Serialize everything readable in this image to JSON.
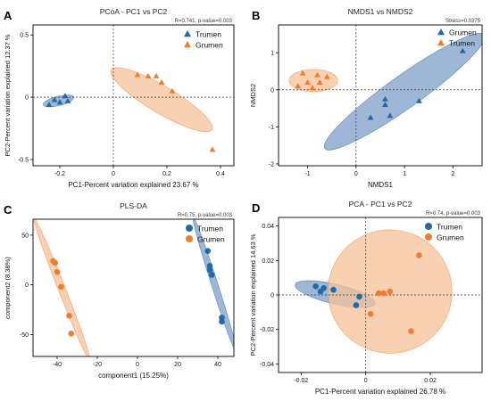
{
  "colors": {
    "blue": "#1f6aa8",
    "orange": "#ee7d2f",
    "blue_fill": "#7f9fca",
    "orange_fill": "#f6c29a"
  },
  "chart_data": [
    {
      "id": "A",
      "type": "scatter",
      "panel_label": "A",
      "title": "PCoA - PC1 vs PC2",
      "annotation": "R=0.741, p-value=0.003",
      "xlabel": "PC1-Percent variation explained 23.67 %",
      "ylabel": "PC2-Percent variation explained 12.37 %",
      "xlim": [
        -0.3,
        0.45
      ],
      "ylim": [
        -0.55,
        0.58
      ],
      "xticks": [
        -0.2,
        0.0,
        0.2,
        0.4
      ],
      "xtick_labels": [
        "-0.2",
        "0",
        "0.2",
        "0.4"
      ],
      "yticks": [
        -0.5,
        0.0,
        0.5
      ],
      "ytick_labels": [
        "-0.5",
        "0",
        "0.5"
      ],
      "ref_lines": {
        "x": 0.0,
        "y": 0.0
      },
      "marker": "triangle",
      "legend_position": "top-right",
      "series": [
        {
          "name": "Trumen",
          "color": "#1f6aa8",
          "points": [
            [
              -0.24,
              -0.06
            ],
            [
              -0.22,
              -0.02
            ],
            [
              -0.2,
              -0.04
            ],
            [
              -0.18,
              0.01
            ],
            [
              -0.17,
              -0.03
            ]
          ],
          "ellipse": {
            "cx": -0.205,
            "cy": -0.03,
            "rx": 0.065,
            "ry": 0.028,
            "angle_deg": 28
          }
        },
        {
          "name": "Grumen",
          "color": "#ee7d2f",
          "points": [
            [
              0.09,
              0.18
            ],
            [
              0.16,
              0.17
            ],
            [
              0.18,
              0.12
            ],
            [
              0.22,
              0.05
            ],
            [
              0.13,
              0.17
            ],
            [
              0.37,
              -0.42
            ]
          ],
          "ellipse": {
            "cx": 0.18,
            "cy": -0.02,
            "rx": 0.305,
            "ry": 0.06,
            "angle_deg": -52
          }
        }
      ]
    },
    {
      "id": "B",
      "type": "scatter",
      "panel_label": "B",
      "title": "NMDS1 vs NMDS2",
      "annotation": "Stress=0.0375",
      "xlabel": "NMDS1",
      "ylabel": "NMDS2",
      "xlim": [
        -1.6,
        2.6
      ],
      "ylim": [
        -2.05,
        1.75
      ],
      "xticks": [
        -1,
        0,
        1,
        2
      ],
      "xtick_labels": [
        "-1",
        "0",
        "1",
        "2"
      ],
      "yticks": [
        -2,
        -1,
        0,
        1
      ],
      "ytick_labels": [
        "-2",
        "-1",
        "0",
        "1"
      ],
      "ref_lines": {
        "x": 0.0,
        "y": 0.0
      },
      "marker": "triangle",
      "legend_position": "top-right",
      "series": [
        {
          "name": "Grumen",
          "color": "#1f6aa8",
          "points": [
            [
              2.2,
              1.05
            ],
            [
              1.3,
              -0.3
            ],
            [
              0.6,
              -0.25
            ],
            [
              0.6,
              -0.4
            ],
            [
              0.7,
              -0.7
            ],
            [
              0.3,
              -0.75
            ]
          ],
          "ellipse": {
            "cx": 1.0,
            "cy": -0.05,
            "rx": 2.25,
            "ry": 0.38,
            "angle_deg": 43
          }
        },
        {
          "name": "Trumen",
          "color": "#ee7d2f",
          "points": [
            [
              -1.1,
              0.45
            ],
            [
              -0.8,
              0.4
            ],
            [
              -0.6,
              0.35
            ],
            [
              -1.0,
              0.2
            ],
            [
              -0.75,
              0.2
            ],
            [
              -1.2,
              0.1
            ],
            [
              -0.9,
              0.05
            ]
          ],
          "ellipse": {
            "cx": -0.88,
            "cy": 0.25,
            "rx": 0.5,
            "ry": 0.3,
            "angle_deg": 0
          }
        }
      ]
    },
    {
      "id": "C",
      "type": "scatter",
      "panel_label": "C",
      "title": "PLS-DA",
      "annotation": "R=0.75, p-value=0.003",
      "xlabel": "component1 (15.25%)",
      "ylabel": "component2 (8.38%)",
      "xlim": [
        -52,
        48
      ],
      "ylim": [
        -72,
        66
      ],
      "xticks": [
        -40,
        -20,
        0,
        20,
        40
      ],
      "xtick_labels": [
        "-40",
        "-20",
        "0",
        "20",
        "40"
      ],
      "yticks": [
        -50,
        0,
        50
      ],
      "ytick_labels": [
        "-50",
        "0",
        "50"
      ],
      "marker": "circle",
      "legend_position": "top-right",
      "series": [
        {
          "name": "Trumen",
          "color": "#1f6aa8",
          "points": [
            [
              35,
              34
            ],
            [
              36,
              19
            ],
            [
              36,
              15
            ],
            [
              37,
              10
            ],
            [
              42,
              -33
            ],
            [
              42,
              -37
            ]
          ],
          "ellipse": {
            "cx": 38.5,
            "cy": 0.0,
            "rx": 70,
            "ry": 1.6,
            "angle_deg": -81
          }
        },
        {
          "name": "Grumen",
          "color": "#ee7d2f",
          "points": [
            [
              -42,
              24
            ],
            [
              -41,
              22
            ],
            [
              -40,
              13
            ],
            [
              -38,
              -2
            ],
            [
              -34,
              -31
            ],
            [
              -33,
              -49
            ]
          ],
          "ellipse": {
            "cx": -37.5,
            "cy": -5.0,
            "rx": 73,
            "ry": 1.8,
            "angle_deg": -79
          }
        }
      ]
    },
    {
      "id": "D",
      "type": "scatter",
      "panel_label": "D",
      "title": "PCA - PC1 vs PC2",
      "annotation": "R=0.74, p-value=0.003",
      "xlabel": "PC1-Percent variation explained 26.78 %",
      "ylabel": "PC2-Percent variation explained 14.63 %",
      "xlim": [
        -0.027,
        0.036
      ],
      "ylim": [
        -0.045,
        0.045
      ],
      "xticks": [
        -0.02,
        0.0,
        0.02
      ],
      "xtick_labels": [
        "-0.02",
        "0",
        "0.02"
      ],
      "yticks": [
        -0.04,
        -0.02,
        0.0,
        0.02,
        0.04
      ],
      "ytick_labels": [
        "-0.04",
        "-0.02",
        "0",
        "0.02",
        "0.04"
      ],
      "ref_lines": {
        "x": 0.0,
        "y": 0.0
      },
      "marker": "circle",
      "legend_position": "top-right",
      "series": [
        {
          "name": "Trumen",
          "color": "#1f6aa8",
          "points": [
            [
              -0.0155,
              0.005
            ],
            [
              -0.013,
              0.004
            ],
            [
              -0.01,
              0.003
            ],
            [
              -0.014,
              0.002
            ],
            [
              -0.002,
              -0.001
            ],
            [
              -0.003,
              -0.006
            ]
          ],
          "ellipse": {
            "cx": -0.0095,
            "cy": 0.0005,
            "rx": 0.0135,
            "ry": 0.0048,
            "angle_deg": -24
          }
        },
        {
          "name": "Grumen",
          "color": "#ee7d2f",
          "points": [
            [
              0.0165,
              0.023
            ],
            [
              0.004,
              0.001
            ],
            [
              0.0055,
              0.001
            ],
            [
              0.0075,
              0.002
            ],
            [
              0.0015,
              -0.011
            ],
            [
              0.014,
              -0.021
            ]
          ],
          "ellipse": {
            "cx": 0.0075,
            "cy": 0.002,
            "rx": 0.0195,
            "ry": 0.034,
            "angle_deg": -12
          }
        }
      ]
    }
  ]
}
